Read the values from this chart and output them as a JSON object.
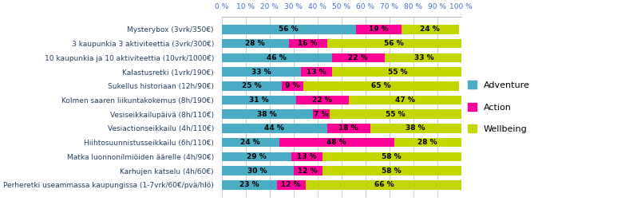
{
  "categories": [
    "Mysterybox (3vrk/350€)",
    "3 kaupunkia 3 aktiviteettia (3vrk/300€)",
    "10 kaupunkia ja 10 aktiviteettia (10vrk/1000€)",
    "Kalastusretki (1vrk/190€)",
    "Sukellus historiaan (12h/90€)",
    "Kolmen saaren liikuntakokemus (8h/190€)",
    "Vesiseikkailupäivä (8h/110€)",
    "Vesiactionseikkailu (4h/110€)",
    "Hiihtosuunnistusseikkailu (6h/110€)",
    "Matka luonnonilmiöiden äärelle (4h/90€)",
    "Karhujen katselu (4h/60€)",
    "Perheretki useammassa kaupungissa (1-7vrk/60€/pvä/hlö)"
  ],
  "adventure": [
    56,
    28,
    46,
    33,
    25,
    31,
    38,
    44,
    24,
    29,
    30,
    23
  ],
  "action": [
    19,
    16,
    22,
    13,
    9,
    22,
    7,
    18,
    48,
    13,
    12,
    12
  ],
  "wellbeing": [
    24,
    56,
    33,
    55,
    65,
    47,
    55,
    38,
    28,
    58,
    58,
    66
  ],
  "color_adventure": "#4BACC6",
  "color_action": "#FF0099",
  "color_wellbeing": "#C4D600",
  "legend_labels": [
    "Adventure",
    "Action",
    "Wellbeing"
  ],
  "ytick_color": "#243F60",
  "xlim": [
    0,
    100
  ],
  "xticks": [
    0,
    10,
    20,
    30,
    40,
    50,
    60,
    70,
    80,
    90,
    100
  ],
  "bar_height": 0.65,
  "label_fontsize": 6.5,
  "tick_fontsize": 6.5,
  "legend_fontsize": 8.0
}
